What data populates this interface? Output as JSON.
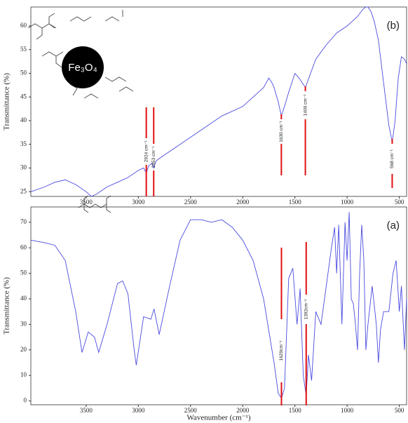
{
  "chart_data": [
    {
      "type": "line",
      "panel_label": "(b)",
      "inset_label": "Fe₃O₄",
      "y_label": "Transmittance (%)",
      "xlim": [
        4030,
        430
      ],
      "xticks": [
        3500,
        3000,
        2500,
        2000,
        1500,
        1000,
        500
      ],
      "ylim": [
        24,
        64
      ],
      "yticks": [
        25,
        30,
        35,
        40,
        45,
        50,
        55,
        60
      ],
      "series": [
        {
          "color": "#4a4ae0",
          "x": [
            4030,
            3900,
            3800,
            3700,
            3600,
            3500,
            3450,
            3400,
            3300,
            3200,
            3100,
            3000,
            2950,
            2924,
            2900,
            2870,
            2853,
            2830,
            2800,
            2600,
            2400,
            2200,
            2000,
            1900,
            1800,
            1750,
            1720,
            1700,
            1660,
            1630,
            1600,
            1560,
            1500,
            1460,
            1430,
            1400,
            1350,
            1300,
            1200,
            1100,
            1000,
            950,
            900,
            850,
            820,
            800,
            770,
            740,
            700,
            650,
            600,
            568,
            540,
            510,
            480,
            450,
            430
          ],
          "values": [
            25,
            26,
            27,
            27.5,
            26.5,
            25,
            24,
            24.5,
            26,
            27,
            28,
            29.5,
            30,
            29,
            30.5,
            31,
            30,
            31.5,
            32,
            35,
            38,
            41,
            43,
            45,
            47,
            49,
            48,
            47,
            44,
            41,
            43,
            46,
            50,
            49,
            48,
            47,
            50,
            53,
            56,
            58.5,
            60,
            61,
            62,
            63.5,
            64,
            64,
            63,
            61,
            57,
            48,
            39,
            35.5,
            40,
            49,
            53.5,
            53,
            52
          ]
        }
      ],
      "annotations": [
        {
          "text": "2924 cm⁻¹",
          "x": 2924
        },
        {
          "text": "2853 cm⁻¹",
          "x": 2853
        },
        {
          "text": "1630 cm⁻¹",
          "x": 1630
        },
        {
          "text": "1400 cm⁻¹",
          "x": 1400
        },
        {
          "text": "568 cm⁻¹",
          "x": 568
        }
      ]
    },
    {
      "type": "line",
      "panel_label": "(a)",
      "y_label": "Transmittance (%)",
      "x_label": "Wavenumber (cm⁻¹)",
      "xlim": [
        4030,
        430
      ],
      "xticks": [
        3500,
        3000,
        2500,
        2000,
        1500,
        1000,
        500
      ],
      "ylim": [
        -1.5,
        76
      ],
      "yticks": [
        0,
        10,
        20,
        30,
        40,
        50,
        60,
        70
      ],
      "series": [
        {
          "color": "#4a4ae0",
          "x": [
            4030,
            3900,
            3800,
            3700,
            3600,
            3540,
            3480,
            3420,
            3380,
            3300,
            3200,
            3150,
            3100,
            3040,
            3020,
            2950,
            2880,
            2850,
            2800,
            2700,
            2600,
            2500,
            2400,
            2300,
            2200,
            2100,
            2000,
            1900,
            1800,
            1700,
            1660,
            1629,
            1600,
            1560,
            1520,
            1480,
            1450,
            1420,
            1392,
            1370,
            1340,
            1300,
            1250,
            1200,
            1150,
            1120,
            1100,
            1080,
            1050,
            1020,
            1000,
            980,
            960,
            940,
            920,
            900,
            880,
            860,
            840,
            820,
            800,
            760,
            720,
            700,
            680,
            650,
            600,
            560,
            530,
            500,
            480,
            450,
            430
          ],
          "values": [
            63,
            62,
            61,
            55,
            35,
            19,
            27,
            25,
            19,
            30,
            46,
            47,
            42,
            20,
            14,
            33,
            32,
            36,
            26,
            45,
            63,
            71,
            71,
            70,
            71,
            68,
            63,
            55,
            40,
            15,
            3,
            1,
            5,
            48,
            52,
            30,
            44,
            10,
            2,
            18,
            8,
            35,
            30,
            45,
            60,
            68,
            50,
            69,
            30,
            70,
            55,
            74,
            40,
            38,
            30,
            20,
            50,
            69,
            55,
            20,
            30,
            45,
            30,
            15,
            28,
            35,
            35,
            50,
            55,
            35,
            45,
            20,
            40
          ]
        }
      ],
      "annotations": [
        {
          "text": "1629cm⁻¹",
          "x": 1629
        },
        {
          "text": "1392cm⁻¹",
          "x": 1392
        }
      ]
    }
  ]
}
